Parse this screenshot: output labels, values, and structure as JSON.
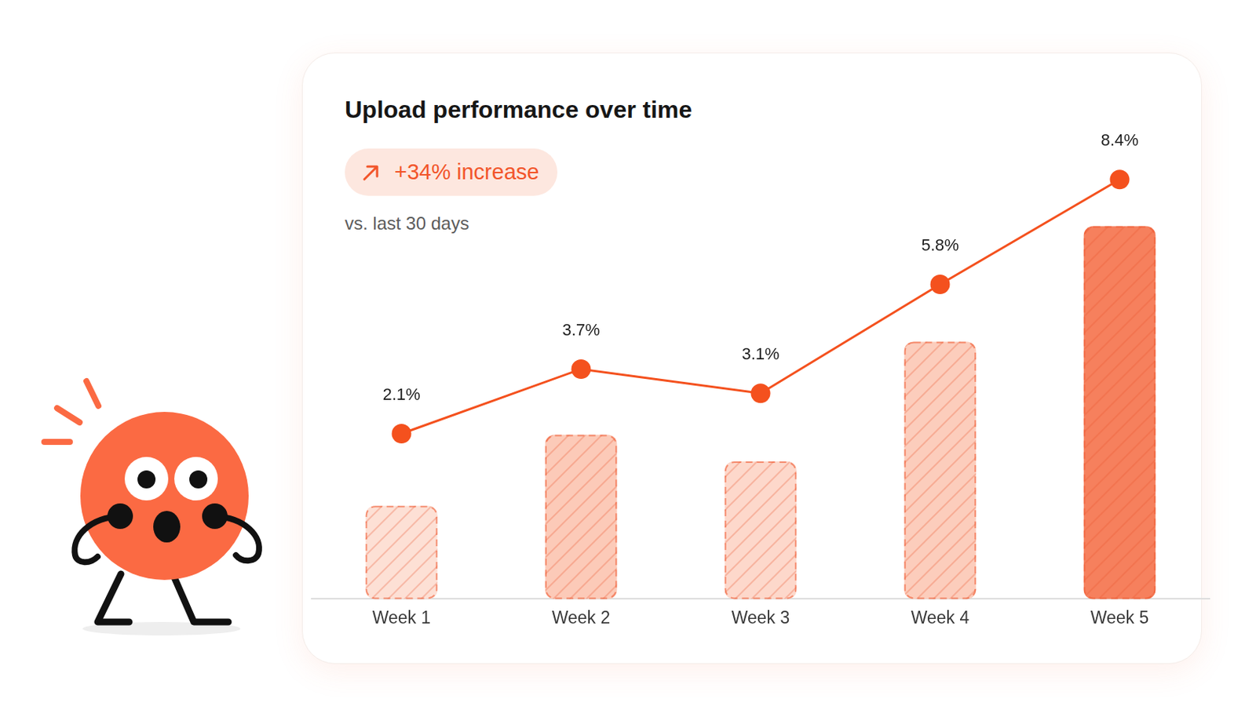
{
  "chart_data": {
    "type": "bar",
    "title": "Upload performance over time",
    "subtitle": "vs. last 30 days",
    "annotations": [
      "+34% increase"
    ],
    "categories": [
      "Week 1",
      "Week 2",
      "Week 3",
      "Week 4",
      "Week 5"
    ],
    "series": [
      {
        "type": "bar",
        "colors": [
          "#fde0d5",
          "#fccab8",
          "#fdd8cb",
          "#fccdbc",
          "#f6805d"
        ],
        "values": [
          2.1,
          3.7,
          3.1,
          5.8,
          8.4
        ]
      },
      {
        "type": "line",
        "axis": "y2",
        "color": "#f4511e",
        "marker": "circle",
        "line_style": "solid",
        "values": [
          2.1,
          3.7,
          3.1,
          5.8,
          8.4
        ],
        "data_labels": true,
        "value_labels": [
          "2.1%",
          "3.7%",
          "3.1%",
          "5.8%",
          "8.4%"
        ]
      }
    ],
    "ylim": [
      0,
      10
    ],
    "yticks": [
      0,
      2,
      4,
      6,
      8,
      10
    ],
    "y2lim": [
      -2,
      9
    ],
    "y2ticks": [
      -2,
      -1,
      0,
      1,
      2,
      3,
      4,
      5,
      6,
      7,
      8,
      9
    ],
    "grid": false,
    "tick_labels": "x"
  }
}
